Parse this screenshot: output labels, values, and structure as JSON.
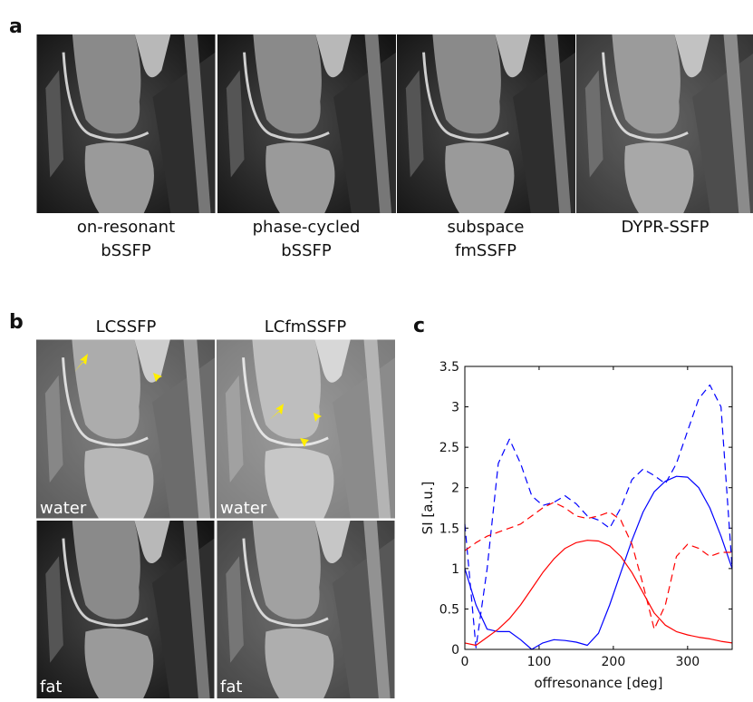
{
  "panel_a": {
    "label": "a",
    "captions": [
      [
        "on-resonant",
        "bSSFP"
      ],
      [
        "phase-cycled",
        "bSSFP"
      ],
      [
        "subspace",
        "fmSSFP"
      ],
      [
        "DYPR-SSFP"
      ]
    ]
  },
  "panel_b": {
    "label": "b",
    "titles": [
      "LCSSFP",
      "LCfmSSFP"
    ],
    "image_labels": [
      "water",
      "water",
      "fat",
      "fat"
    ]
  },
  "panel_c": {
    "label": "c"
  },
  "chart_data": {
    "type": "line",
    "x_label": "offresonance [deg]",
    "y_label": "SI [a.u.]",
    "x": [
      0,
      15,
      30,
      45,
      60,
      75,
      90,
      105,
      120,
      135,
      150,
      165,
      180,
      195,
      210,
      225,
      240,
      255,
      270,
      285,
      300,
      315,
      330,
      345,
      360
    ],
    "series": [
      {
        "color": "#0000ff",
        "dash": false,
        "values": [
          1.0,
          0.55,
          0.25,
          0.22,
          0.22,
          0.12,
          0.0,
          0.08,
          0.12,
          0.11,
          0.09,
          0.05,
          0.2,
          0.55,
          0.95,
          1.35,
          1.7,
          1.95,
          2.08,
          2.14,
          2.13,
          2.0,
          1.75,
          1.4,
          1.0
        ]
      },
      {
        "color": "#0000ff",
        "dash": true,
        "values": [
          1.55,
          0.02,
          1.0,
          2.3,
          2.6,
          2.3,
          1.9,
          1.78,
          1.82,
          1.9,
          1.8,
          1.65,
          1.6,
          1.5,
          1.75,
          2.1,
          2.23,
          2.15,
          2.05,
          2.3,
          2.7,
          3.1,
          3.27,
          3.0,
          1.0
        ]
      },
      {
        "color": "#ff0000",
        "dash": false,
        "values": [
          0.08,
          0.05,
          0.15,
          0.25,
          0.38,
          0.55,
          0.75,
          0.95,
          1.12,
          1.25,
          1.32,
          1.35,
          1.34,
          1.28,
          1.15,
          0.95,
          0.7,
          0.45,
          0.3,
          0.22,
          0.18,
          0.15,
          0.13,
          0.1,
          0.08
        ]
      },
      {
        "color": "#ff0000",
        "dash": true,
        "values": [
          1.22,
          1.32,
          1.4,
          1.45,
          1.5,
          1.55,
          1.65,
          1.75,
          1.82,
          1.75,
          1.65,
          1.62,
          1.65,
          1.7,
          1.6,
          1.3,
          0.8,
          0.25,
          0.55,
          1.15,
          1.3,
          1.25,
          1.15,
          1.2,
          1.2
        ]
      }
    ],
    "xlim": [
      0,
      360
    ],
    "ylim": [
      0,
      3.5
    ],
    "xticks": [
      0,
      100,
      200,
      300
    ],
    "yticks": [
      0,
      0.5,
      1,
      1.5,
      2,
      2.5,
      3,
      3.5
    ],
    "box": true
  }
}
